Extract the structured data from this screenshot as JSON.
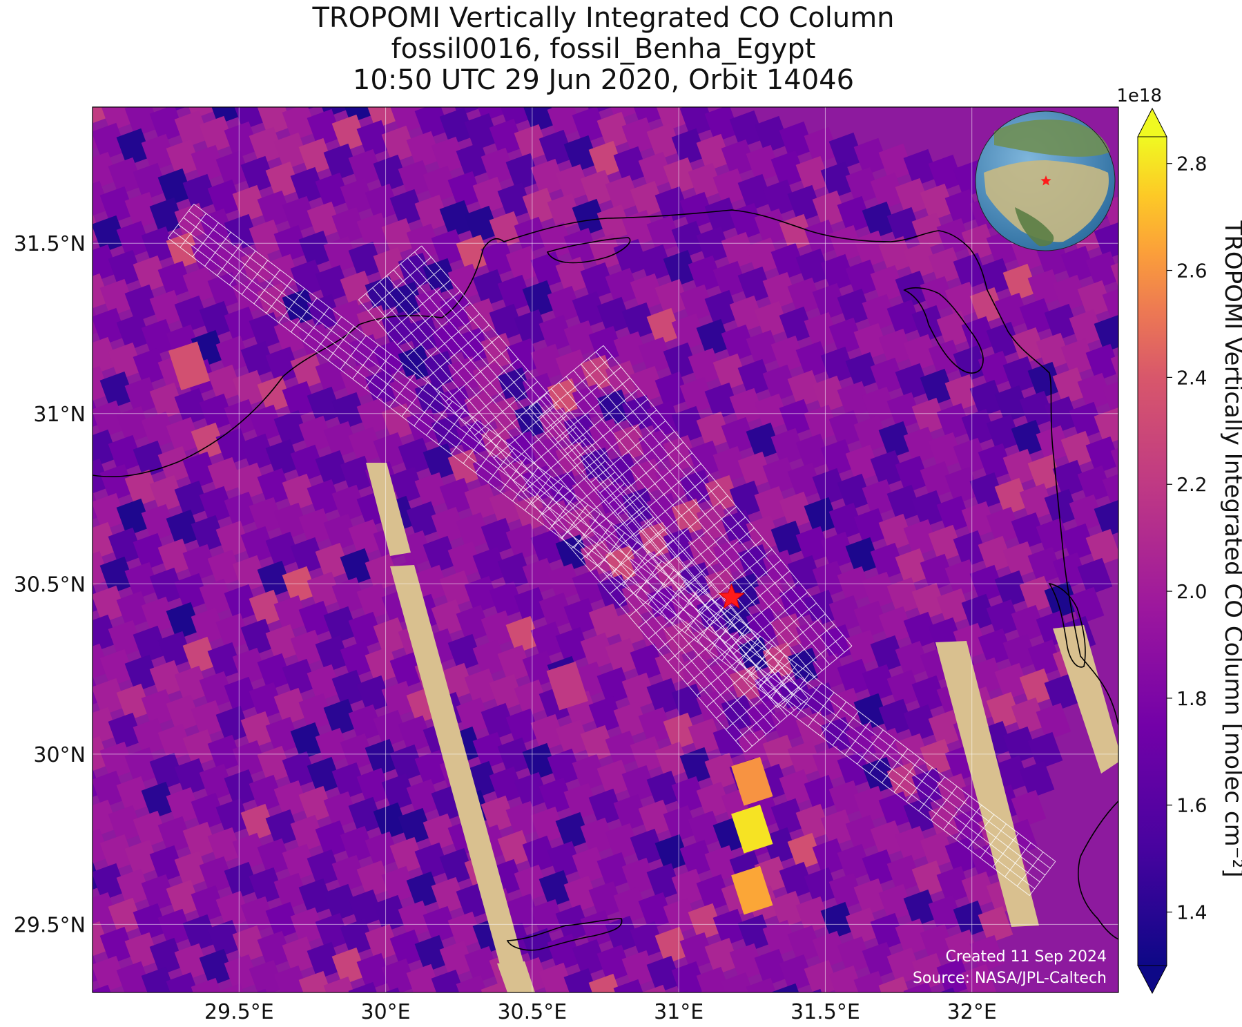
{
  "title": {
    "line1": "TROPOMI Vertically Integrated CO Column",
    "line2": "fossil0016, fossil_Benha_Egypt",
    "line3": "10:50 UTC 29 Jun 2020, Orbit 14046"
  },
  "map": {
    "lon_range": [
      29.0,
      32.5
    ],
    "lat_range": [
      29.3,
      31.9
    ],
    "lon_ticks": [
      {
        "value": 29.5,
        "label": "29.5°E"
      },
      {
        "value": 30.0,
        "label": "30°E"
      },
      {
        "value": 30.5,
        "label": "30.5°E"
      },
      {
        "value": 31.0,
        "label": "31°E"
      },
      {
        "value": 31.5,
        "label": "31.5°E"
      },
      {
        "value": 32.0,
        "label": "32°E"
      }
    ],
    "lat_ticks": [
      {
        "value": 29.5,
        "label": "29.5°N"
      },
      {
        "value": 30.0,
        "label": "30°N"
      },
      {
        "value": 30.5,
        "label": "30.5°N"
      },
      {
        "value": 31.0,
        "label": "31°N"
      },
      {
        "value": 31.5,
        "label": "31.5°N"
      }
    ],
    "target": {
      "name": "fossil_Benha_Egypt",
      "lon": 31.18,
      "lat": 30.46,
      "marker": "red-star"
    },
    "gridlines": true,
    "inset_globe": {
      "position": "top-right",
      "marker": "red-star"
    }
  },
  "colorbar": {
    "label": "TROPOMI Vertically Integrated CO Column [molec cm⁻²]",
    "exponent_label": "1e18",
    "range": [
      1.3,
      2.85
    ],
    "ticks": [
      "1.4",
      "1.6",
      "1.8",
      "2.0",
      "2.2",
      "2.4",
      "2.6",
      "2.8"
    ],
    "colormap": "plasma",
    "colors": [
      "#0d0887",
      "#5302a3",
      "#8b0aa5",
      "#b83289",
      "#db5c68",
      "#f48849",
      "#febd2a",
      "#f0f921"
    ]
  },
  "credit": {
    "line1": "Created 11 Sep 2024",
    "line2": "Source: NASA/JPL-Caltech"
  },
  "chart_data": {
    "type": "heatmap",
    "title": "TROPOMI Vertically Integrated CO Column",
    "xlabel": "Longitude",
    "ylabel": "Latitude",
    "xlim": [
      29.0,
      32.5
    ],
    "ylim": [
      29.3,
      31.9
    ],
    "value_range": [
      1.3,
      2.85
    ],
    "value_scale": "1e18",
    "hotspots": [
      {
        "lon": 31.25,
        "lat": 29.78,
        "value": 2.8
      },
      {
        "lon": 31.25,
        "lat": 29.6,
        "value": 2.65
      },
      {
        "lon": 31.25,
        "lat": 29.92,
        "value": 2.6
      },
      {
        "lon": 29.33,
        "lat": 31.14,
        "value": 2.35
      },
      {
        "lon": 30.62,
        "lat": 30.2,
        "value": 2.2
      }
    ]
  }
}
